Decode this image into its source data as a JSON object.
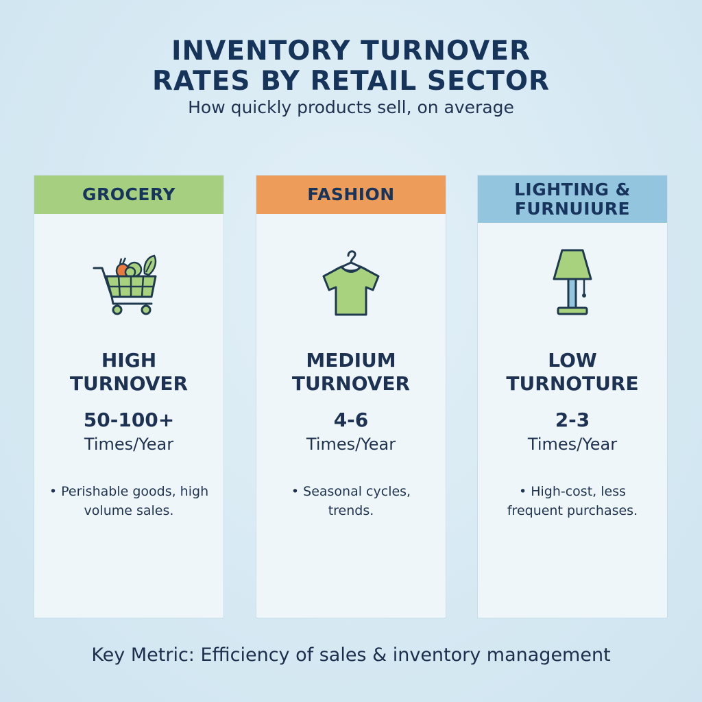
{
  "title": {
    "line1": "INVENTORY TURNOVER",
    "line2": "RATES BY RETAIL SECTOR"
  },
  "subtitle": "How quickly products sell, on average",
  "sectors": [
    {
      "header": [
        "GROCERY"
      ],
      "header_color": "#a6cf7f",
      "icon": "shopping-cart-icon",
      "level": [
        "HIGH",
        "TURNOVER"
      ],
      "rate": "50-100+",
      "unit": "Times/Year",
      "note": "• Perishable goods, high volume sales."
    },
    {
      "header": [
        "FASHION"
      ],
      "header_color": "#ee9c5a",
      "icon": "shirt-icon",
      "level": [
        "MEDIUM",
        "TURNOVER"
      ],
      "rate": "4-6",
      "unit": "Times/Year",
      "note": "• Seasonal cycles, trends."
    },
    {
      "header": [
        "LIGHTING &",
        "FURNUIURE"
      ],
      "header_color": "#93c5de",
      "icon": "lamp-icon",
      "level": [
        "LOW",
        "TURNOTURE"
      ],
      "rate": "2-3",
      "unit": "Times/Year",
      "note": "• High-cost, less frequent purchases."
    }
  ],
  "footer": "Key Metric: Efficiency of sales & inventory management",
  "colors": {
    "icon_fill": "#a8d27e",
    "icon_stroke": "#1f3a4f",
    "carrot": "#e8793f",
    "title": "#16335a"
  }
}
